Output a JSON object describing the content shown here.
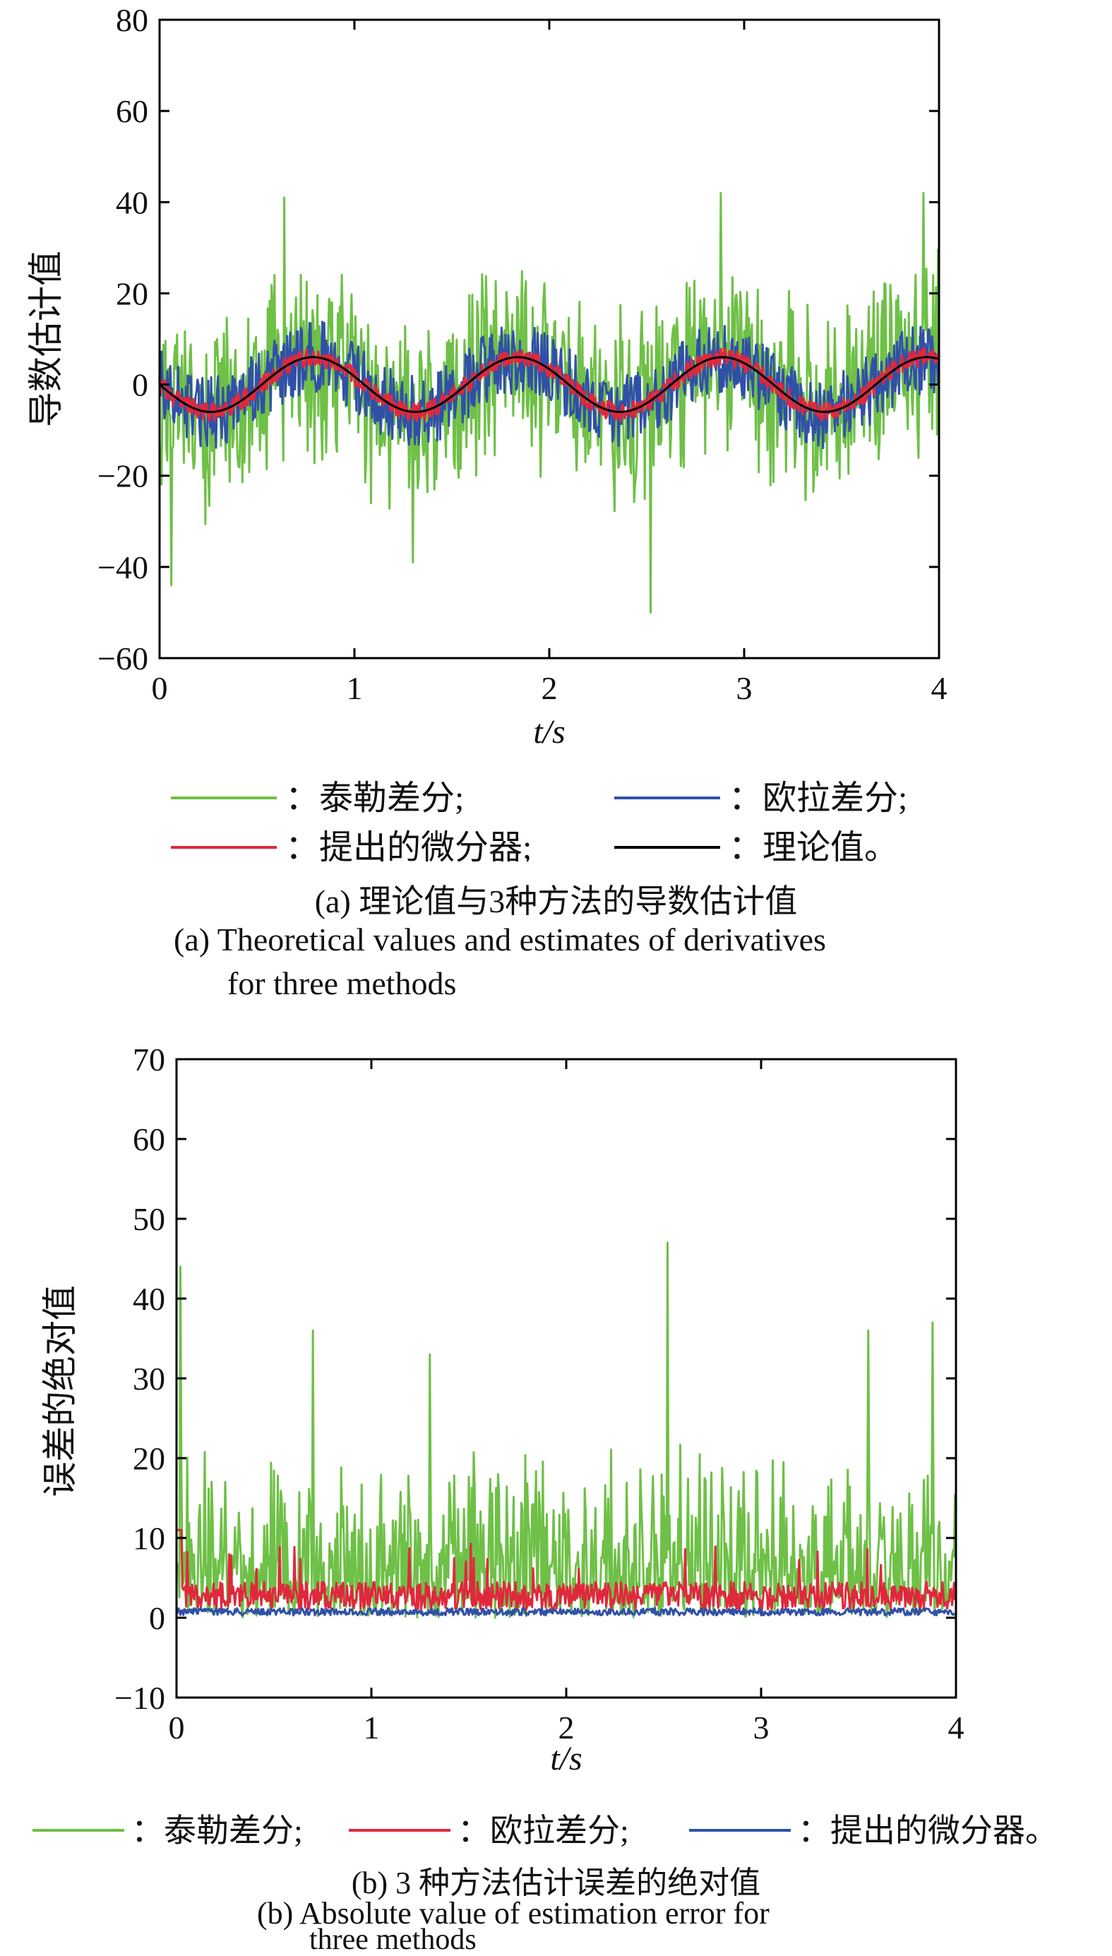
{
  "chart_data": [
    {
      "type": "line",
      "xlabel": "t/s",
      "ylabel": "导数估计值",
      "xlim": [
        0,
        4
      ],
      "ylim": [
        -60,
        80
      ],
      "xticks": [
        0,
        1,
        2,
        3,
        4
      ],
      "yticks": [
        -60,
        -40,
        -20,
        0,
        20,
        40,
        60,
        80
      ],
      "grid": false,
      "legend_placement": "below",
      "noise": {
        "amplitude": [
          0.6,
          8,
          0
        ],
        "peaks": [
          {
            "t": 0.06,
            "v": -44
          },
          {
            "t": 0.64,
            "v": 41
          },
          {
            "t": 1.3,
            "v": -39
          },
          {
            "t": 2.52,
            "v": -50
          },
          {
            "t": 2.88,
            "v": 42
          },
          {
            "t": 3.92,
            "v": 42
          }
        ]
      },
      "series": [
        {
          "name": "泰勒差分",
          "color": "#6ec046",
          "y_range": [
            -50,
            42
          ]
        },
        {
          "name": "欧拉差分",
          "color": "#3050a8",
          "y_range": [
            -15,
            15
          ]
        },
        {
          "name": "提出的微分器",
          "color": "#e0283c",
          "y_range": [
            -8,
            8
          ]
        },
        {
          "name": "理论值",
          "color": "#000000",
          "function": "6*sin(2*pi*t/1.05 - pi)"
        }
      ],
      "caption_cn": "(a) 理论值与3种方法的导数估计值",
      "caption_en_1": "(a) Theoretical values and estimates of derivatives",
      "caption_en_2": "for three methods"
    },
    {
      "type": "line",
      "xlabel": "t/s",
      "ylabel": "误差的绝对值",
      "xlim": [
        0,
        4
      ],
      "ylim": [
        -10,
        70
      ],
      "xticks": [
        0,
        1,
        2,
        3,
        4
      ],
      "yticks": [
        -10,
        0,
        10,
        20,
        30,
        40,
        50,
        60,
        70
      ],
      "grid": false,
      "legend_placement": "below",
      "noise": {
        "amplitude": [
          10,
          3,
          0.7
        ],
        "peaks": [
          {
            "t": 0.02,
            "v": 44
          },
          {
            "t": 0.7,
            "v": 36
          },
          {
            "t": 1.3,
            "v": 33
          },
          {
            "t": 2.52,
            "v": 47
          },
          {
            "t": 3.55,
            "v": 36
          },
          {
            "t": 3.88,
            "v": 37
          }
        ]
      },
      "series": [
        {
          "name": "泰勒差分",
          "color": "#6ec046",
          "y_range": [
            0,
            47
          ]
        },
        {
          "name": "欧拉差分",
          "color": "#e0283c",
          "y_range": [
            0,
            12
          ]
        },
        {
          "name": "提出的微分器",
          "color": "#3050a8",
          "y_range": [
            0,
            3
          ]
        }
      ],
      "caption_cn": "(b) 3 种方法估计误差的绝对值",
      "caption_en_1": "(b) Absolute value of estimation error for",
      "caption_en_2": "three methods"
    }
  ],
  "legend_a": {
    "row1": [
      {
        "label": "：泰勒差分;",
        "color": "#6ec046"
      },
      {
        "label": "：欧拉差分;",
        "color": "#3050a8"
      }
    ],
    "row2": [
      {
        "label": "：提出的微分器;",
        "color": "#e0283c"
      },
      {
        "label": "：理论值。",
        "color": "#000000"
      }
    ]
  },
  "legend_b": {
    "row": [
      {
        "label": "：泰勒差分;",
        "color": "#6ec046"
      },
      {
        "label": "：欧拉差分;",
        "color": "#e0283c"
      },
      {
        "label": "：提出的微分器。",
        "color": "#3050a8"
      }
    ]
  }
}
